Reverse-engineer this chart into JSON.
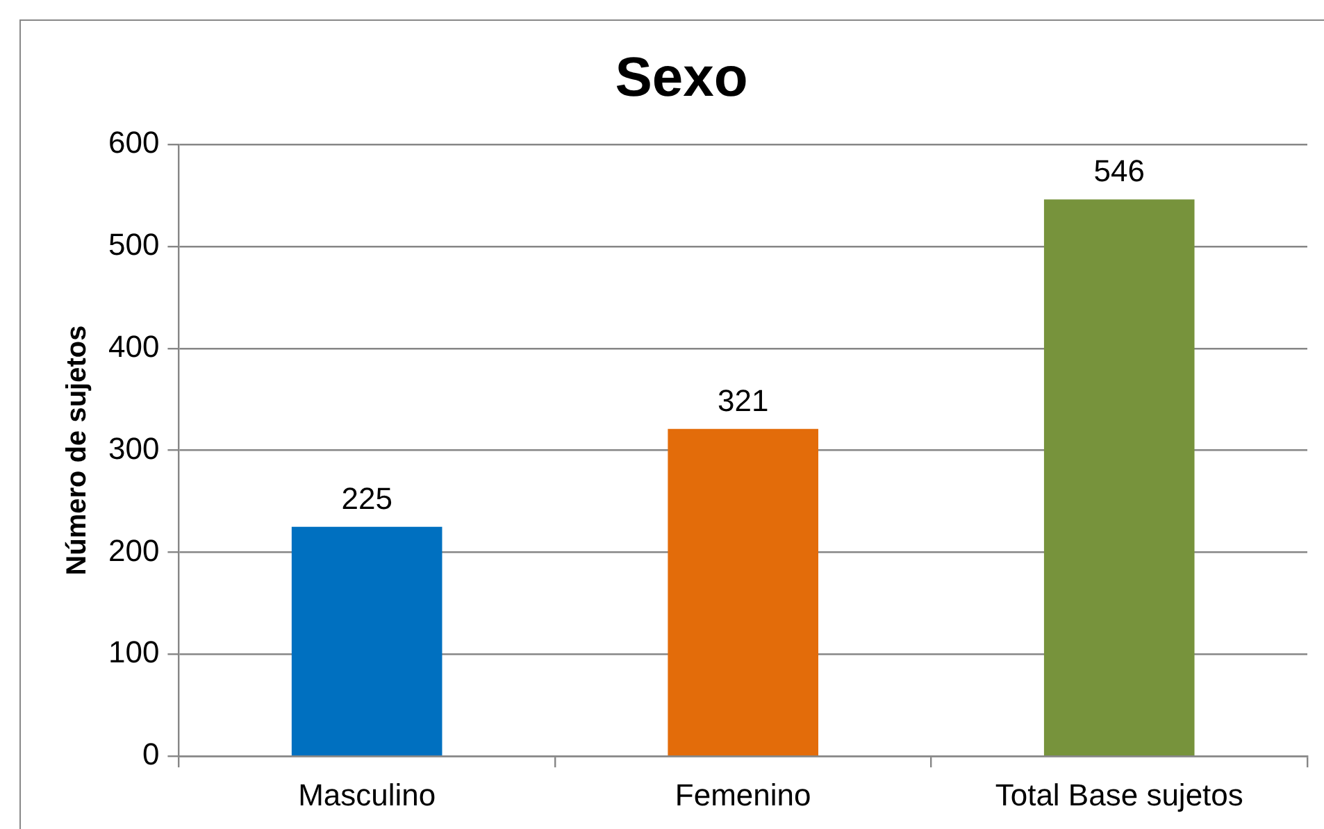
{
  "chart_data": {
    "type": "bar",
    "title": "Sexo",
    "ylabel": "Número de sujetos",
    "categories": [
      "Masculino",
      "Femenino",
      "Total Base sujetos"
    ],
    "values": [
      225,
      321,
      546
    ],
    "colors": [
      "#0070c0",
      "#e36c0a",
      "#77933c"
    ],
    "ylim": [
      0,
      600
    ],
    "yticks": [
      0,
      100,
      200,
      300,
      400,
      500,
      600
    ],
    "grid": "y",
    "data_labels": true,
    "legend": false
  }
}
